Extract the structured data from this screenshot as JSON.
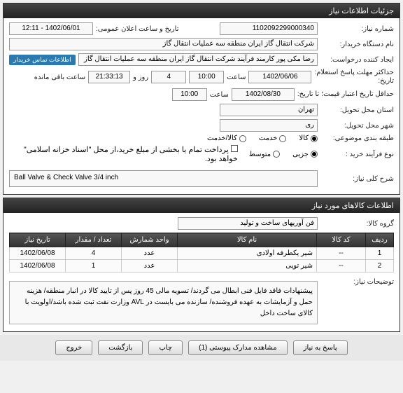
{
  "panel1": {
    "title": "جزئیات اطلاعات نیاز",
    "need_no_label": "شماره نیاز:",
    "need_no": "1102092299000340",
    "announce_label": "تاریخ و ساعت اعلان عمومی:",
    "announce_val": "1402/06/01 - 12:11",
    "buyer_label": "نام دستگاه خریدار:",
    "buyer_val": "شرکت انتقال گاز ایران منطقه سه عملیات انتقال گاز",
    "requester_label": "ایجاد کننده درخواست:",
    "requester_val": "رضا مکی پور کارمند فرآیند شرکت انتقال گاز ایران منطقه سه عملیات انتقال گاز",
    "contact_badge": "اطلاعات تماس خریدار",
    "deadline_label": "حداکثر مهلت پاسخ استعلام:",
    "deadline_until_label": "تاریخ:",
    "deadline_date": "1402/06/06",
    "time_label": "ساعت",
    "deadline_time": "10:00",
    "days_remaining": "4",
    "day_and": "روز و",
    "time_remaining": "21:33:13",
    "remaining_suffix": "ساعت باقی مانده",
    "validity_label": "حداقل تاریخ اعتبار قیمت؛ تا تاریخ:",
    "validity_date": "1402/08/30",
    "validity_time": "10:00",
    "province_label": "استان محل تحویل:",
    "province_val": "تهران",
    "city_label": "شهر محل تحویل:",
    "city_val": "ری",
    "category_label": "طبقه بندی موضوعی:",
    "cat_goods": "کالا",
    "cat_service": "خدمت",
    "cat_goods_service": "کالا/خدمت",
    "buy_type_label": "نوع فرآیند خرید :",
    "buy_minor": "جزیی",
    "buy_medium": "متوسط",
    "payment_note": "پرداخت تمام یا بخشی از مبلغ خرید،از محل \"اسناد خزانه اسلامی\" خواهد بود.",
    "need_title_label": "شرح کلی نیاز:",
    "need_title_val": "Ball Valve & Check Valve 3/4 inch"
  },
  "panel2": {
    "title": "اطلاعات کالاهای مورد نیاز",
    "group_label": "گروه کالا:",
    "group_val": "فن آوریهای ساخت و تولید",
    "cols": {
      "row": "ردیف",
      "code": "کد کالا",
      "name": "نام کالا",
      "unit": "واحد شمارش",
      "qty": "تعداد / مقدار",
      "date": "تاریخ نیاز"
    },
    "rows": [
      {
        "row": "1",
        "code": "--",
        "name": "شیر یکطرفه اولادی",
        "unit": "عدد",
        "qty": "4",
        "date": "1402/06/08"
      },
      {
        "row": "2",
        "code": "--",
        "name": "شیر توپی",
        "unit": "عدد",
        "qty": "1",
        "date": "1402/06/08"
      }
    ],
    "desc_label": "توضیحات نیاز:",
    "desc_text": "پیشنهادات فاقد فایل فنی ابطال می گردند/ تسویه مالی 45 روز پس از تایید کالا در انبار منطقه/ هزینه حمل و آزمایشات به عهده فروشنده/ سازنده می بایست در AVL وزارت نفت ثبت شده باشد/اولویت با کالای ساخت داخل"
  },
  "buttons": {
    "respond": "پاسخ به نیاز",
    "attachments": "مشاهده مدارک پیوستی (1)",
    "print": "چاپ",
    "back": "بازگشت",
    "exit": "خروج"
  }
}
